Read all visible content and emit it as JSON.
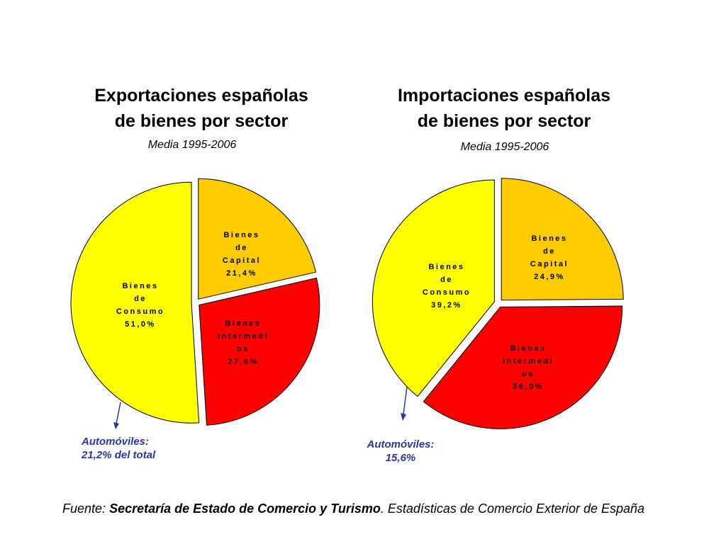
{
  "chart_data": [
    {
      "type": "pie",
      "title_line1": "Exportaciones españolas",
      "title_line2": "de bienes por sector",
      "subtitle": "Media 1995-2006",
      "slices": [
        {
          "label_lines": [
            "Bienes",
            "de",
            "Capital",
            "21,4%"
          ],
          "value": 21.4,
          "color": "#ffcc00"
        },
        {
          "label_lines": [
            "Bienes",
            "Intermedi",
            "os",
            "27,6%"
          ],
          "value": 27.6,
          "color": "#ff0000"
        },
        {
          "label_lines": [
            "Bienes",
            "de",
            "Consumo",
            "51,0%"
          ],
          "value": 51.0,
          "color": "#ffff00"
        }
      ],
      "annotation_lines": [
        "Automóviles:",
        "21,2% del total"
      ]
    },
    {
      "type": "pie",
      "title_line1": "Importaciones españolas",
      "title_line2": "de bienes por sector",
      "subtitle": "Media 1995-2006",
      "slices": [
        {
          "label_lines": [
            "Bienes",
            "de",
            "Capital",
            "24,9%"
          ],
          "value": 24.9,
          "color": "#ffcc00"
        },
        {
          "label_lines": [
            "Bienes",
            "Intermedi",
            "os",
            "36,0%"
          ],
          "value": 36.0,
          "color": "#ff0000"
        },
        {
          "label_lines": [
            "Bienes",
            "de",
            "Consumo",
            "39,2%"
          ],
          "value": 39.2,
          "color": "#ffff00"
        }
      ],
      "annotation_lines": [
        "Automóviles:",
        "15,6%"
      ]
    }
  ],
  "footer": {
    "prefix": "Fuente:",
    "organization": "Secretaría de Estado de Comercio y Turismo",
    "rest": ". Estadísticas de Comercio Exterior de España"
  },
  "colors": {
    "annotation": "#2b34a8",
    "outline": "#000000"
  }
}
